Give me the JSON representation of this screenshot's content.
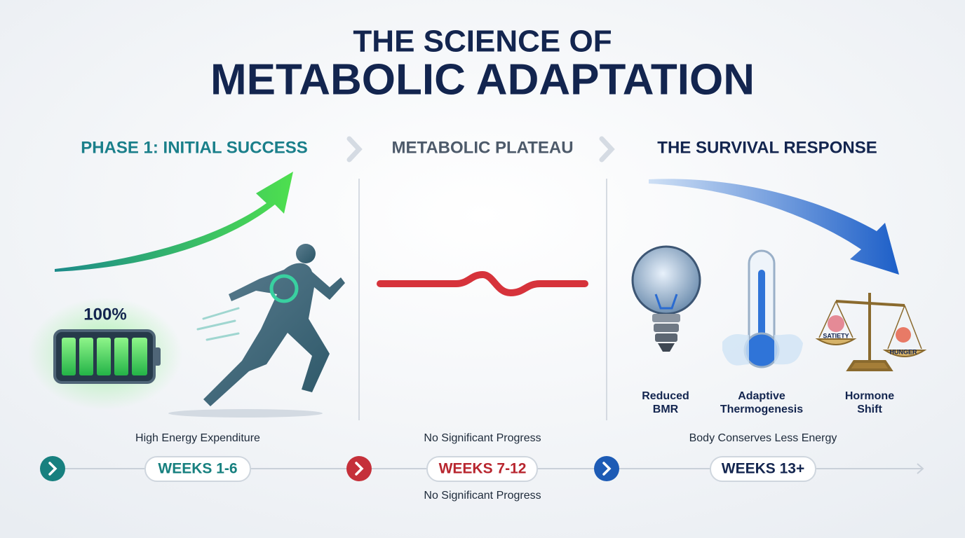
{
  "header": {
    "title_line1": "THE SCIENCE OF",
    "title_line2": "METABOLIC ADAPTATION"
  },
  "phases": [
    {
      "heading": "PHASE 1: INITIAL SUCCESS",
      "badge": "100%",
      "caption": "High Energy Expenditure",
      "weeks": "WEEKS 1-6"
    },
    {
      "heading": "METABOLIC PLATEAU",
      "caption": "No Significant Progress",
      "weeks": "WEEKS 7-12",
      "note": "No Significant Progress"
    },
    {
      "heading": "THE SURVIVAL RESPONSE",
      "caption": "Body Conserves Less Energy",
      "weeks": "WEEKS 13+",
      "icons": [
        {
          "label": [
            "Reduced",
            "BMR"
          ]
        },
        {
          "label": [
            "Adaptive",
            "Thermogenesis"
          ]
        },
        {
          "label": [
            "Hormone",
            "Shift"
          ],
          "left_pan": "SATIETY",
          "right_pan": "HUNGER"
        }
      ]
    }
  ]
}
